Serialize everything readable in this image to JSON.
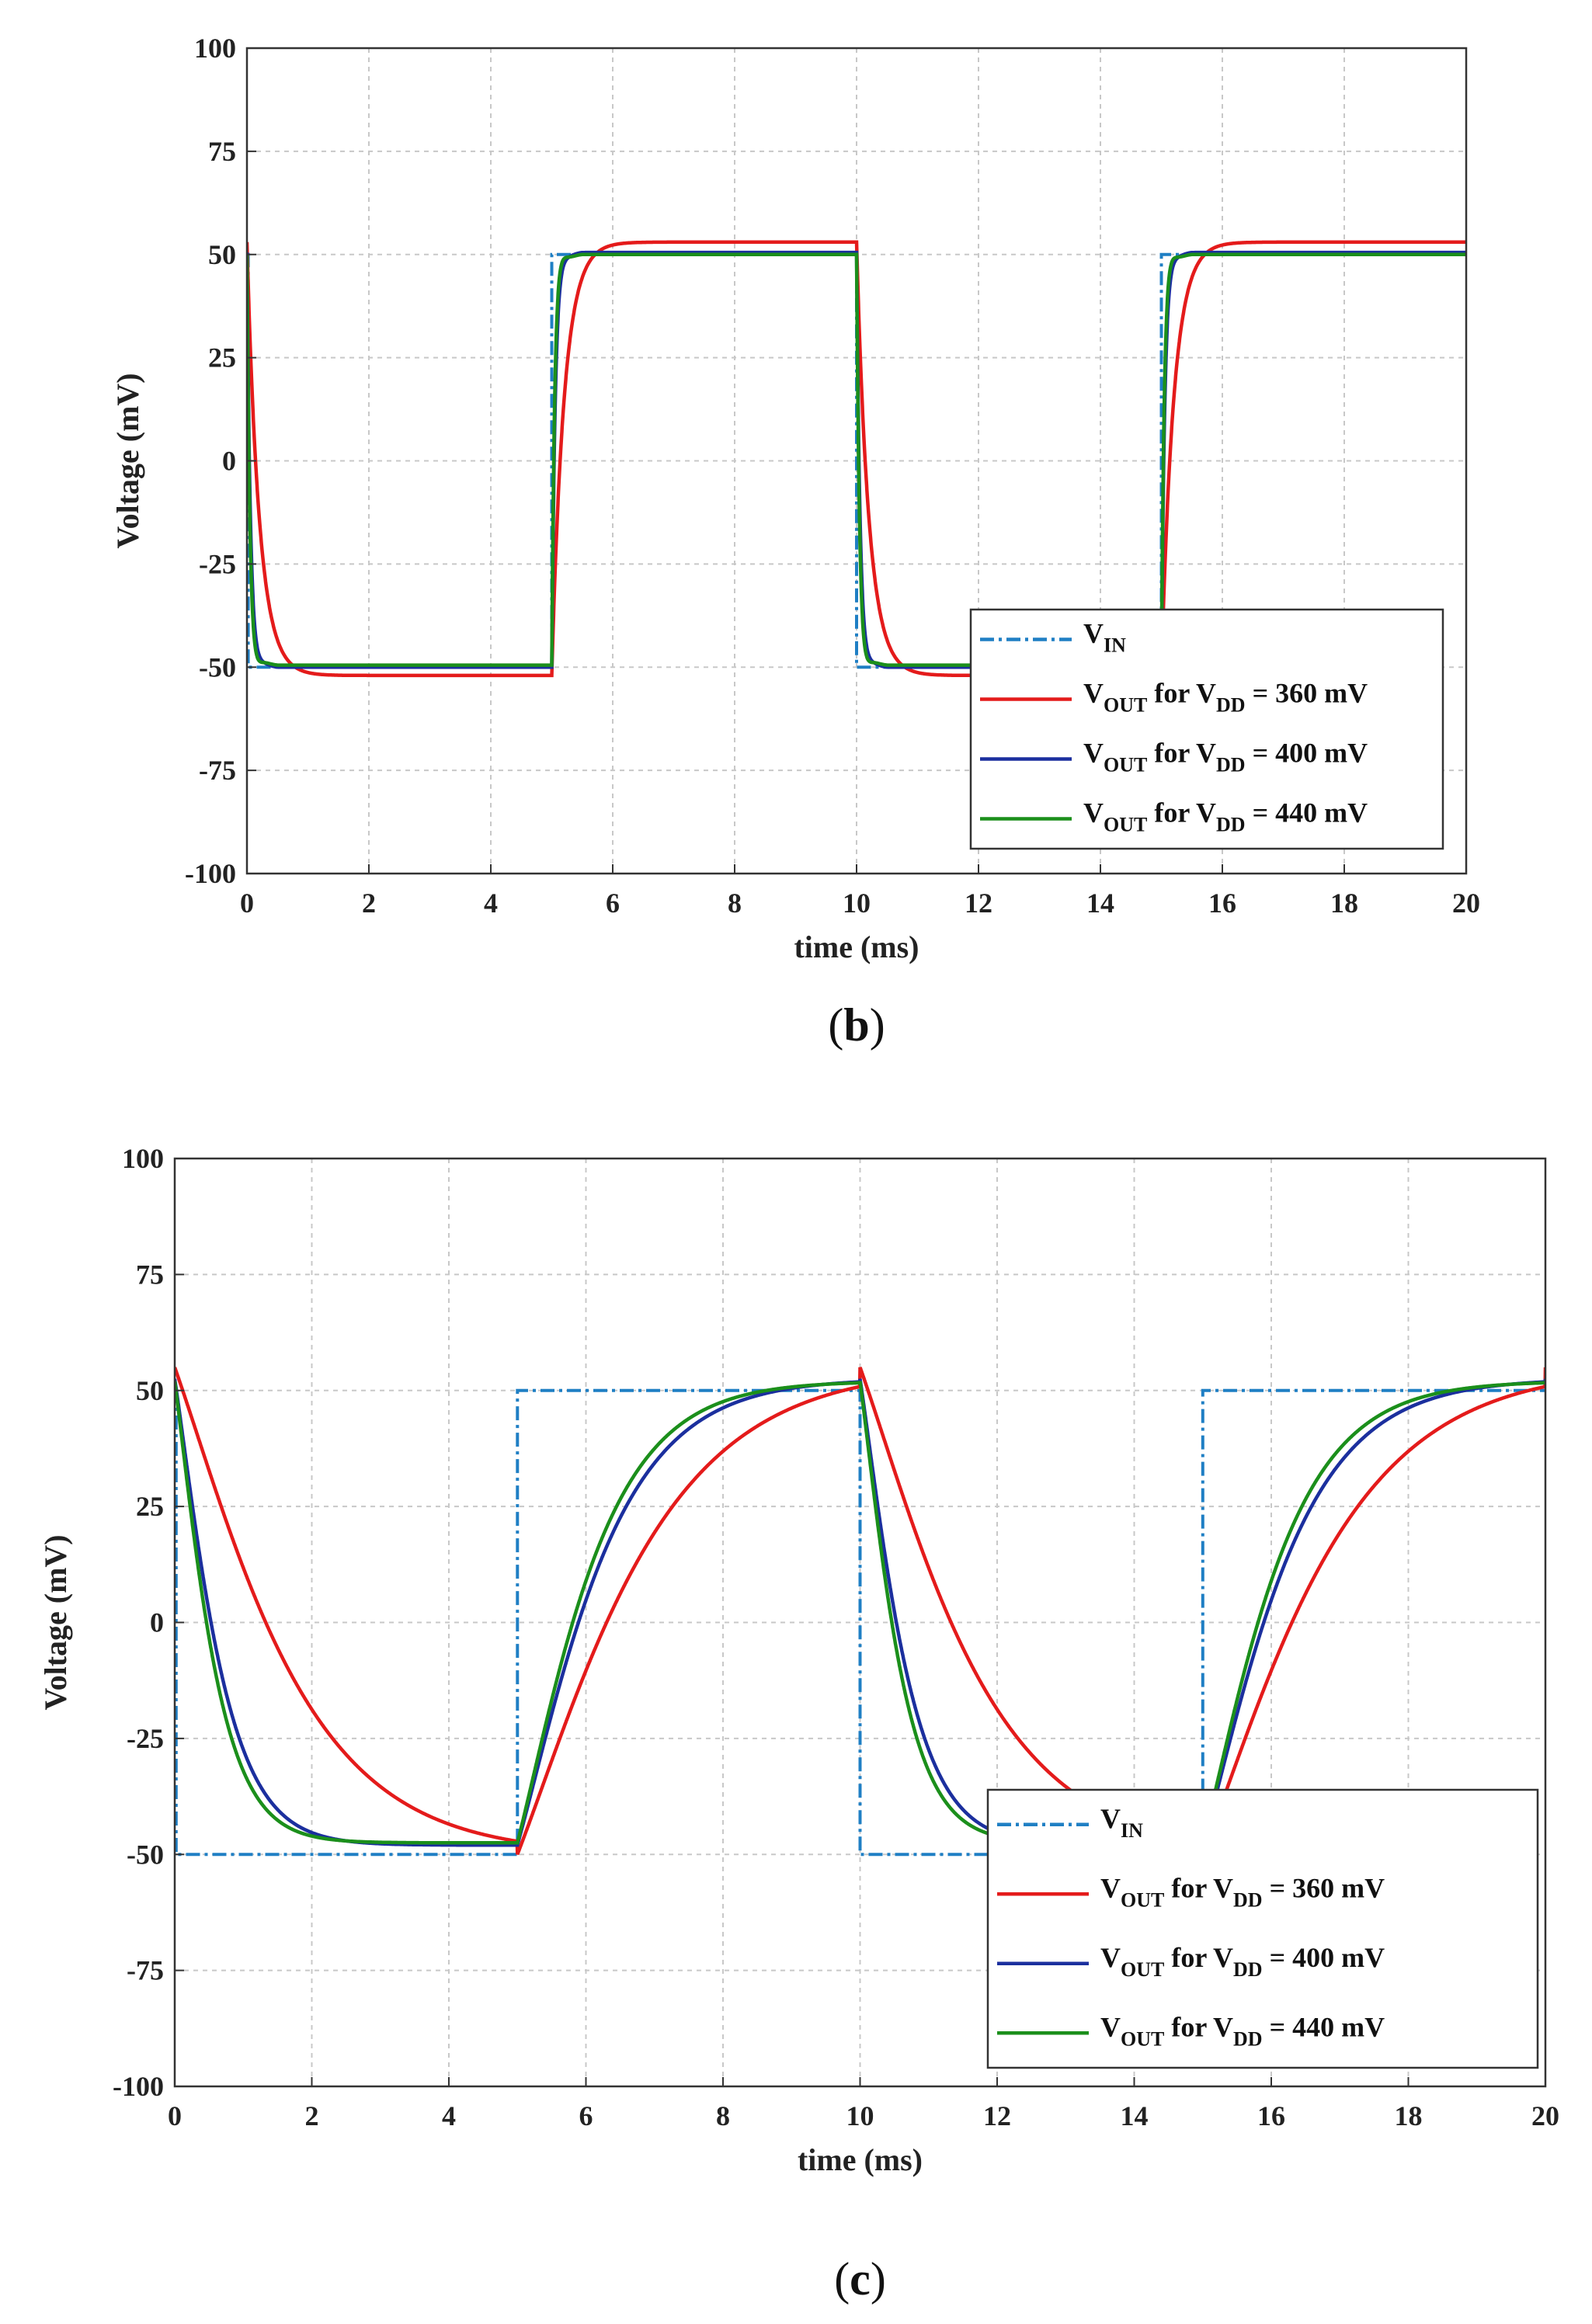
{
  "chart_data": [
    {
      "id": "b",
      "type": "line",
      "panel_label": "b",
      "xlabel": "time (ms)",
      "ylabel": "Voltage (mV)",
      "xlim": [
        0,
        20
      ],
      "ylim": [
        -100,
        100
      ],
      "xticks": [
        0,
        2,
        4,
        6,
        8,
        10,
        12,
        14,
        16,
        18,
        20
      ],
      "yticks": [
        -100,
        -75,
        -50,
        -25,
        0,
        25,
        50,
        75,
        100
      ],
      "grid": true,
      "legend_position": "bottom-right",
      "legend": [
        {
          "main": "V",
          "sub": "IN",
          "rest": ""
        },
        {
          "main": "V",
          "sub": "OUT",
          "rest": " for V",
          "sub2": "DD",
          "rest2": " = 360 mV"
        },
        {
          "main": "V",
          "sub": "OUT",
          "rest": " for V",
          "sub2": "DD",
          "rest2": " = 400 mV"
        },
        {
          "main": "V",
          "sub": "OUT",
          "rest": " for V",
          "sub2": "DD",
          "rest2": " = 440 mV"
        }
      ],
      "series": [
        {
          "name": "VIN",
          "color": "#1f7fc4",
          "dash": "dashdot",
          "kind": "square",
          "low": -50,
          "high": 50,
          "period": 10,
          "start_high": true
        },
        {
          "name": "VOUT VDD=360 mV",
          "color": "#e41b1b",
          "kind": "response",
          "low": -52,
          "high": 53,
          "tau": 0.2,
          "overshoot": 0
        },
        {
          "name": "VOUT VDD=400 mV",
          "color": "#1b2f9e",
          "kind": "response",
          "low": -50,
          "high": 50.5,
          "tau": 0.06,
          "overshoot": 6
        },
        {
          "name": "VOUT VDD=440 mV",
          "color": "#1b8f1b",
          "kind": "response",
          "low": -49.5,
          "high": 50,
          "tau": 0.05,
          "overshoot": 7
        }
      ]
    },
    {
      "id": "c",
      "type": "line",
      "panel_label": "c",
      "xlabel": "time (ms)",
      "ylabel": "Voltage (mV)",
      "xlim": [
        0,
        20
      ],
      "ylim": [
        -100,
        100
      ],
      "xticks": [
        0,
        2,
        4,
        6,
        8,
        10,
        12,
        14,
        16,
        18,
        20
      ],
      "yticks": [
        -100,
        -75,
        -50,
        -25,
        0,
        25,
        50,
        75,
        100
      ],
      "grid": true,
      "legend_position": "bottom-right",
      "legend": [
        {
          "main": "V",
          "sub": "IN",
          "rest": ""
        },
        {
          "main": "V",
          "sub": "OUT",
          "rest": " for V",
          "sub2": "DD",
          "rest2": " = 360 mV"
        },
        {
          "main": "V",
          "sub": "OUT",
          "rest": " for V",
          "sub2": "DD",
          "rest2": " = 400 mV"
        },
        {
          "main": "V",
          "sub": "OUT",
          "rest": " for V",
          "sub2": "DD",
          "rest2": " = 440 mV"
        }
      ],
      "series": [
        {
          "name": "VIN",
          "color": "#1f7fc4",
          "dash": "dashdot",
          "kind": "square",
          "low": -50,
          "high": 50,
          "period": 10,
          "start_high": true
        },
        {
          "name": "VOUT VDD=360 mV",
          "color": "#e41b1b",
          "kind": "slow",
          "low": -50,
          "high": 55,
          "fall_tau": 1.0,
          "rise_tau": 1.1
        },
        {
          "name": "VOUT VDD=400 mV",
          "color": "#1b2f9e",
          "kind": "slow",
          "low": -48,
          "high": 52.5,
          "fall_tau": 0.4,
          "rise_tau": 0.75
        },
        {
          "name": "VOUT VDD=440 mV",
          "color": "#1b8f1b",
          "kind": "slow",
          "low": -47.5,
          "high": 52,
          "fall_tau": 0.35,
          "rise_tau": 0.68
        }
      ]
    }
  ]
}
